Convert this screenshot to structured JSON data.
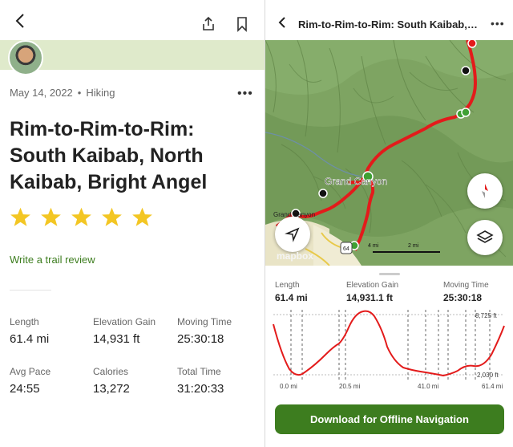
{
  "activity": {
    "date": "May 14, 2022",
    "separator": "•",
    "type": "Hiking",
    "title": "Rim-to-Rim-to-Rim: South Kaibab, North Kaibab, Bright Angel",
    "rating": 5,
    "review_link": "Write a trail review",
    "more": "•••"
  },
  "stats": [
    {
      "label": "Length",
      "value": "61.4 mi"
    },
    {
      "label": "Elevation Gain",
      "value": "14,931 ft"
    },
    {
      "label": "Moving Time",
      "value": "25:30:18"
    },
    {
      "label": "Avg Pace",
      "value": "24:55"
    },
    {
      "label": "Calories",
      "value": "13,272"
    },
    {
      "label": "Total Time",
      "value": "31:20:33"
    }
  ],
  "map_view": {
    "title": "Rim-to-Rim-to-Rim: South Kaibab, N...",
    "more": "•••",
    "labels": {
      "grand_canyon": "Grand Canyon",
      "grand_canyon_small": "Grand Canyon",
      "highway": "64",
      "scale_4mi": "4 mi",
      "scale_2mi": "2 mi",
      "attribution": "mapbox"
    },
    "stats": [
      {
        "label": "Length",
        "value": "61.4 mi"
      },
      {
        "label": "Elevation Gain",
        "value": "14,931.1 ft"
      },
      {
        "label": "Moving Time",
        "value": "25:30:18"
      }
    ],
    "elevation": {
      "max_label": "8,725 ft",
      "min_label": "2,030 ft",
      "x_ticks": [
        "0.0 mi",
        "20.5 mi",
        "41.0 mi",
        "61.4 mi"
      ]
    },
    "download_button": "Download for Offline Navigation"
  },
  "colors": {
    "accent": "#3d7d1f",
    "track": "#e31b1b",
    "star": "#f3c623",
    "map": "#7fa563"
  }
}
